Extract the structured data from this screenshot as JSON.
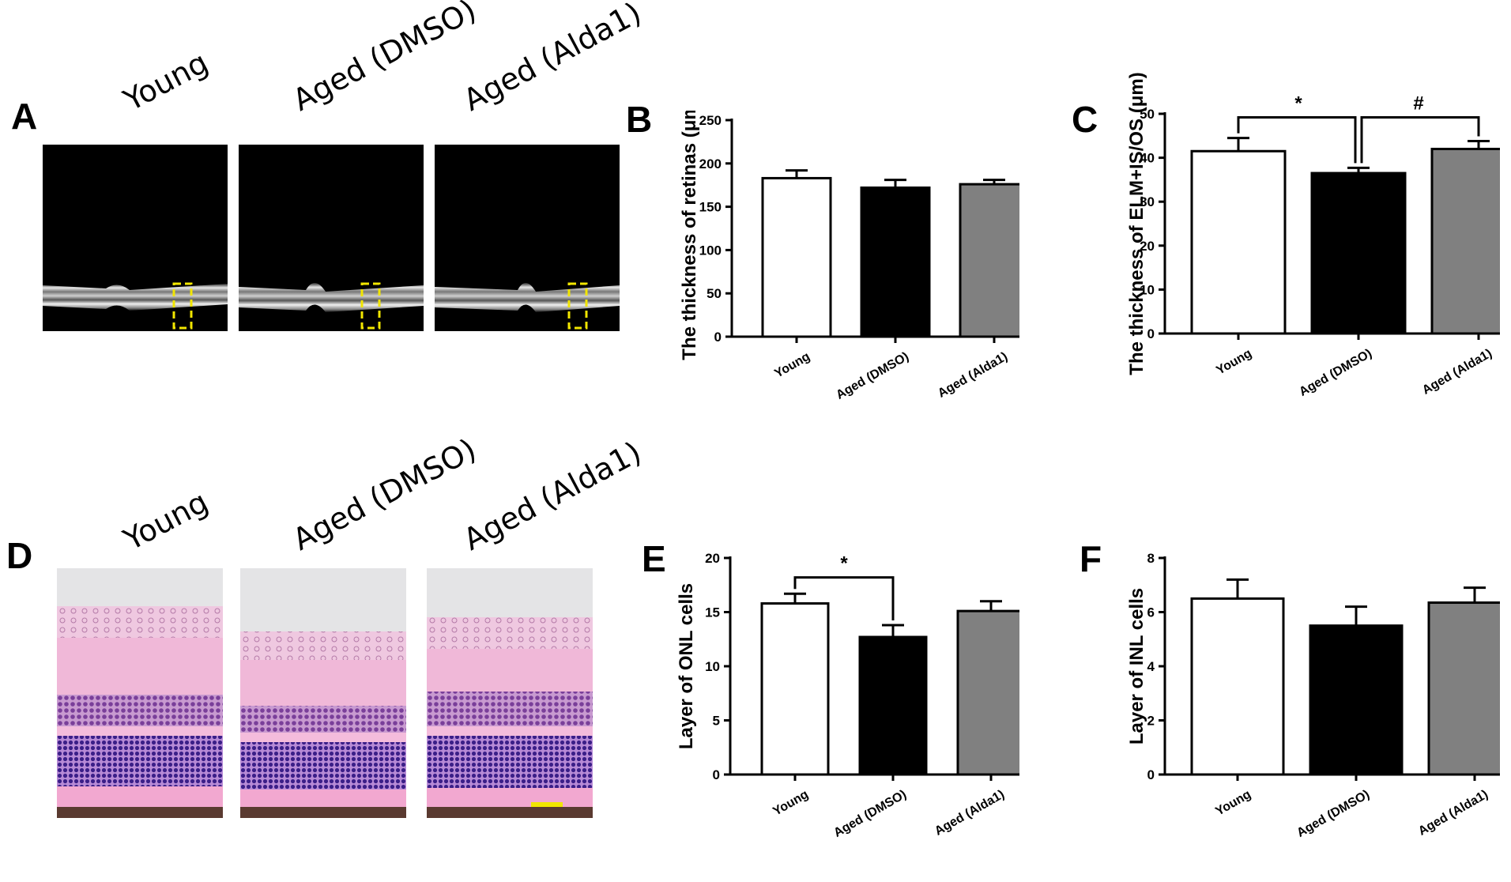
{
  "panel_letters": [
    "A",
    "B",
    "C",
    "D",
    "E",
    "F"
  ],
  "image_labels": {
    "A": [
      "Young",
      "Aged (DMSO)",
      "Aged (Alda1)"
    ],
    "D": [
      "Young",
      "Aged (DMSO)",
      "Aged (Alda1)"
    ]
  },
  "colors": {
    "young": "#ffffff",
    "dmso": "#000000",
    "alda1": "#808080",
    "roi_box": "#f2e600",
    "scale_bar": "#f2e600"
  },
  "chart_data": [
    {
      "id": "B",
      "type": "bar",
      "categories": [
        "Young",
        "Aged (DMSO)",
        "Aged (Alda1)"
      ],
      "values": [
        183,
        172,
        176
      ],
      "errors": [
        9,
        9,
        5
      ],
      "ylabel": "The thickness of retinas (μm)",
      "ylim": [
        0,
        250
      ],
      "yticks": [
        0,
        50,
        100,
        150,
        200,
        250
      ],
      "significance": []
    },
    {
      "id": "C",
      "type": "bar",
      "categories": [
        "Young",
        "Aged (DMSO)",
        "Aged (Alda1)"
      ],
      "values": [
        41.5,
        36.5,
        42
      ],
      "errors": [
        3,
        1.2,
        1.8
      ],
      "ylabel": "The thickness of ELM+IS/OS (μm)",
      "ylim": [
        0,
        50
      ],
      "yticks": [
        0,
        10,
        20,
        30,
        40,
        50
      ],
      "significance": [
        {
          "from": 0,
          "to": 1,
          "label": "*"
        },
        {
          "from": 1,
          "to": 2,
          "label": "#"
        }
      ]
    },
    {
      "id": "E",
      "type": "bar",
      "categories": [
        "Young",
        "Aged (DMSO)",
        "Aged (Alda1)"
      ],
      "values": [
        15.8,
        12.7,
        15.1
      ],
      "errors": [
        0.9,
        1.1,
        0.9
      ],
      "ylabel": "Layer of ONL cells",
      "ylim": [
        0,
        20
      ],
      "yticks": [
        0,
        5,
        10,
        15,
        20
      ],
      "significance": [
        {
          "from": 0,
          "to": 1,
          "label": "*"
        }
      ]
    },
    {
      "id": "F",
      "type": "bar",
      "categories": [
        "Young",
        "Aged (DMSO)",
        "Aged (Alda1)"
      ],
      "values": [
        6.5,
        5.5,
        6.35
      ],
      "errors": [
        0.7,
        0.7,
        0.55
      ],
      "ylabel": "Layer of INL cells",
      "ylim": [
        0,
        8
      ],
      "yticks": [
        0,
        2,
        4,
        6,
        8
      ],
      "significance": []
    }
  ]
}
